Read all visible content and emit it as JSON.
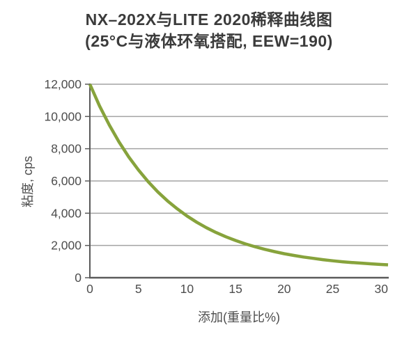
{
  "chart_data": {
    "type": "line",
    "title": "NX–202X与LITE 2020稀释曲线图",
    "subtitle": "(25°C与液体环氧搭配, EEW=190)",
    "ylabel": "粘度, cps",
    "xlabel": "添加(重量比%)",
    "x": [
      0,
      1,
      2,
      3,
      4,
      5,
      6,
      7,
      8,
      9,
      10,
      11,
      12,
      13,
      14,
      15,
      16,
      17,
      18,
      19,
      20,
      21,
      22,
      23,
      24,
      25,
      26,
      27,
      28,
      29,
      30,
      30.7
    ],
    "y": [
      12000,
      10650,
      9470,
      8420,
      7490,
      6680,
      5960,
      5320,
      4760,
      4270,
      3830,
      3440,
      3100,
      2800,
      2540,
      2310,
      2100,
      1920,
      1760,
      1620,
      1490,
      1380,
      1280,
      1200,
      1120,
      1050,
      990,
      940,
      900,
      860,
      820,
      800
    ],
    "xlim": [
      0,
      30.7
    ],
    "ylim": [
      0,
      12000
    ],
    "xticks": [
      0,
      5,
      10,
      15,
      20,
      25,
      30
    ],
    "yticks": [
      0,
      2000,
      4000,
      6000,
      8000,
      10000,
      12000
    ],
    "grid": "horizontal",
    "legend": "none",
    "colors": {
      "line": "#87a33c",
      "grid": "#a3a3a3",
      "axis": "#5a5a5a",
      "tick_label": "#4d4d4d",
      "title": "#3b3b3b"
    }
  }
}
